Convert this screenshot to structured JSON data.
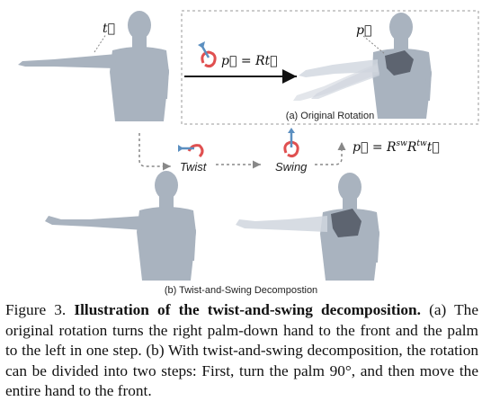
{
  "figure": {
    "labels": {
      "t_vector": "t⃗",
      "p_vector": "p⃗",
      "eq_original": "p⃗ = Rt⃗",
      "eq_decomp_lhs": "p⃗ = R",
      "eq_decomp_sw": "sw",
      "eq_decomp_R": "R",
      "eq_decomp_tw": "tw",
      "eq_decomp_t": "t⃗",
      "twist": "Twist",
      "swing": "Swing",
      "panel_a": "(a) Original Rotation",
      "panel_b": "(b) Twist-and-Swing Decompostion"
    }
  },
  "caption": {
    "prefix": "Figure 3. ",
    "title": "Illustration of the twist-and-swing decomposition.",
    "body": " (a) The original rotation turns the right palm-down hand to the front and the palm to the left in one step. (b) With twist-and-swing decomposition, the rotation can be divided into two steps: First, turn the palm 90°, and then move the entire hand to the front."
  },
  "colors": {
    "body": "#a9b3bf",
    "ghost": "#d0d6de",
    "hand": "#5d6470",
    "rot_red": "#e05050",
    "rot_blue": "#5b8fc0",
    "arrow": "#888888"
  },
  "icons": [
    "rotation-icon",
    "twist-icon",
    "swing-icon"
  ]
}
